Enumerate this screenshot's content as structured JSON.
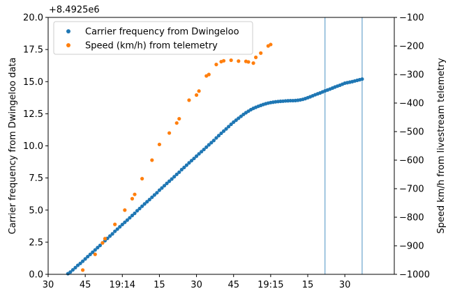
{
  "chart_data": {
    "type": "scatter",
    "title": "",
    "offset_label": "+8.4925e6",
    "xlabel": "",
    "ylabel": "Carrier frequency from Dwingeloo data",
    "y2label": "Speed km/h from livestream telemetry",
    "x_unit": "seconds",
    "xlim": [
      30,
      170
    ],
    "ylim": [
      0,
      20
    ],
    "y2lim": [
      -1000,
      -100
    ],
    "x_ticks": [
      {
        "value": 30,
        "label": "30"
      },
      {
        "value": 45,
        "label": "45"
      },
      {
        "value": 60,
        "label": "19:14"
      },
      {
        "value": 75,
        "label": "15"
      },
      {
        "value": 90,
        "label": "30"
      },
      {
        "value": 105,
        "label": "45"
      },
      {
        "value": 120,
        "label": "19:15"
      },
      {
        "value": 135,
        "label": "15"
      },
      {
        "value": 150,
        "label": "30"
      }
    ],
    "y_ticks": [
      "0.0",
      "2.5",
      "5.0",
      "7.5",
      "10.0",
      "12.5",
      "15.0",
      "17.5",
      "20.0"
    ],
    "y2_ticks": [
      "-1000",
      "-900",
      "-800",
      "-700",
      "-600",
      "-500",
      "-400",
      "-300",
      "-200",
      "-100"
    ],
    "vlines": [
      142,
      157
    ],
    "legend_position": "upper-left",
    "series": [
      {
        "name": "Carrier frequency from Dwingeloo",
        "color": "#1f77b4",
        "axis": "left",
        "x": [
          38,
          39,
          40,
          41,
          42,
          43,
          44,
          45,
          46,
          47,
          48,
          49,
          50,
          51,
          52,
          53,
          54,
          55,
          56,
          57,
          58,
          59,
          60,
          61,
          62,
          63,
          64,
          65,
          66,
          67,
          68,
          69,
          70,
          71,
          72,
          73,
          74,
          75,
          76,
          77,
          78,
          79,
          80,
          81,
          82,
          83,
          84,
          85,
          86,
          87,
          88,
          89,
          90,
          91,
          92,
          93,
          94,
          95,
          96,
          97,
          98,
          99,
          100,
          101,
          102,
          103,
          104,
          105,
          106,
          107,
          108,
          109,
          110,
          111,
          112,
          113,
          114,
          115,
          116,
          117,
          118,
          119,
          120,
          121,
          122,
          123,
          124,
          125,
          126,
          127,
          128,
          129,
          130,
          131,
          132,
          133,
          134,
          135,
          136,
          137,
          138,
          139,
          140,
          141,
          142,
          143,
          144,
          145,
          146,
          147,
          148,
          149,
          150,
          151,
          152,
          153,
          154,
          155,
          156,
          157
        ],
        "y": [
          0.05,
          0.18,
          0.35,
          0.52,
          0.7,
          0.85,
          1.02,
          1.2,
          1.38,
          1.55,
          1.72,
          1.9,
          2.08,
          2.25,
          2.45,
          2.62,
          2.8,
          2.98,
          3.15,
          3.35,
          3.52,
          3.7,
          3.88,
          4.05,
          4.22,
          4.4,
          4.58,
          4.75,
          4.95,
          5.12,
          5.3,
          5.48,
          5.65,
          5.82,
          6.0,
          6.18,
          6.35,
          6.55,
          6.72,
          6.9,
          7.08,
          7.25,
          7.42,
          7.6,
          7.78,
          7.95,
          8.15,
          8.32,
          8.5,
          8.68,
          8.85,
          9.02,
          9.2,
          9.38,
          9.55,
          9.72,
          9.9,
          10.08,
          10.25,
          10.42,
          10.62,
          10.8,
          10.98,
          11.15,
          11.32,
          11.5,
          11.68,
          11.85,
          12.0,
          12.15,
          12.3,
          12.45,
          12.58,
          12.7,
          12.82,
          12.92,
          13.0,
          13.08,
          13.15,
          13.22,
          13.28,
          13.33,
          13.37,
          13.4,
          13.43,
          13.45,
          13.47,
          13.48,
          13.5,
          13.51,
          13.52,
          13.52,
          13.53,
          13.55,
          13.58,
          13.62,
          13.68,
          13.75,
          13.82,
          13.9,
          13.98,
          14.05,
          14.12,
          14.2,
          14.28,
          14.35,
          14.42,
          14.5,
          14.58,
          14.65,
          14.72,
          14.8,
          14.88,
          14.92,
          14.96,
          15.0,
          15.05,
          15.1,
          15.15,
          15.2
        ]
      },
      {
        "name": "Speed (km/h) from telemetry",
        "color": "#ff7f0e",
        "axis": "right",
        "x": [
          44,
          49,
          52,
          53,
          57,
          61,
          64,
          65,
          68,
          72,
          75,
          79,
          82,
          83,
          87,
          90,
          91,
          94,
          95,
          98,
          100,
          101,
          104,
          107,
          110,
          111,
          113,
          114,
          116,
          119,
          120
        ],
        "y": [
          -985,
          -930,
          -890,
          -875,
          -825,
          -775,
          -735,
          -720,
          -665,
          -600,
          -545,
          -505,
          -470,
          -455,
          -390,
          -372,
          -358,
          -305,
          -300,
          -265,
          -255,
          -252,
          -250,
          -253,
          -254,
          -256,
          -260,
          -240,
          -225,
          -200,
          -195
        ]
      }
    ]
  }
}
